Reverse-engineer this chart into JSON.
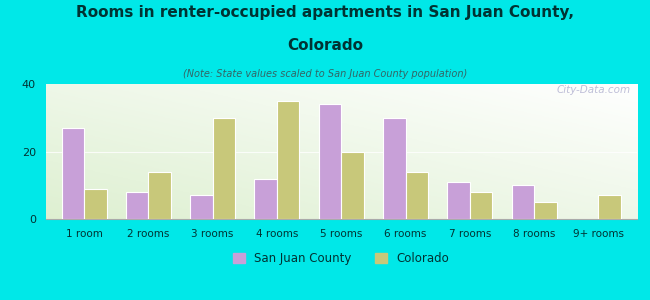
{
  "title_line1": "Rooms in renter-occupied apartments in San Juan County,",
  "title_line2": "Colorado",
  "subtitle": "(Note: State values scaled to San Juan County population)",
  "categories": [
    "1 room",
    "2 rooms",
    "3 rooms",
    "4 rooms",
    "5 rooms",
    "6 rooms",
    "7 rooms",
    "8 rooms",
    "9+ rooms"
  ],
  "san_juan": [
    27,
    8,
    7,
    12,
    34,
    30,
    11,
    10,
    0
  ],
  "colorado": [
    9,
    14,
    30,
    35,
    20,
    14,
    8,
    5,
    7
  ],
  "san_juan_color": "#c8a0d8",
  "colorado_color": "#c8c87a",
  "background_color": "#00e8e8",
  "ylim": [
    0,
    40
  ],
  "yticks": [
    0,
    20,
    40
  ],
  "bar_width": 0.35,
  "watermark": "City-Data.com",
  "legend_san_juan": "San Juan County",
  "legend_colorado": "Colorado",
  "title_color": "#003333",
  "subtitle_color": "#336666",
  "tick_color": "#003333"
}
